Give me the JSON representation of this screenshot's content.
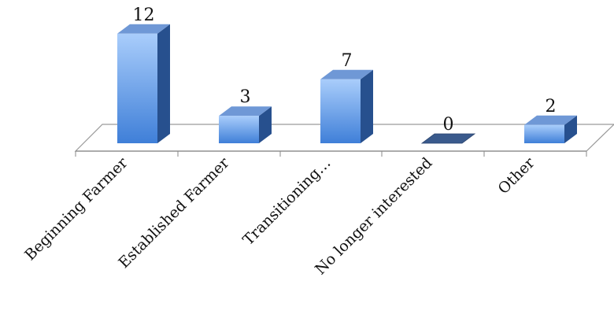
{
  "chart_data": {
    "type": "bar",
    "categories": [
      "Beginning Farmer",
      "Established Farmer",
      "Transitioning…",
      "No longer interested",
      "Other"
    ],
    "values": [
      12,
      3,
      7,
      0,
      2
    ],
    "data_labels": [
      "12",
      "3",
      "7",
      "0",
      "2"
    ],
    "grid": false,
    "legend": "none",
    "style": "3d-column"
  },
  "colors": {
    "bar_front_top": "#a9cdfb",
    "bar_front_bottom": "#3f7fd8",
    "bar_side": "#27508e",
    "bar_top": "#6f98d6",
    "floor_stroke": "#9a9a9a",
    "zero_bar": "#3a5a8c"
  }
}
